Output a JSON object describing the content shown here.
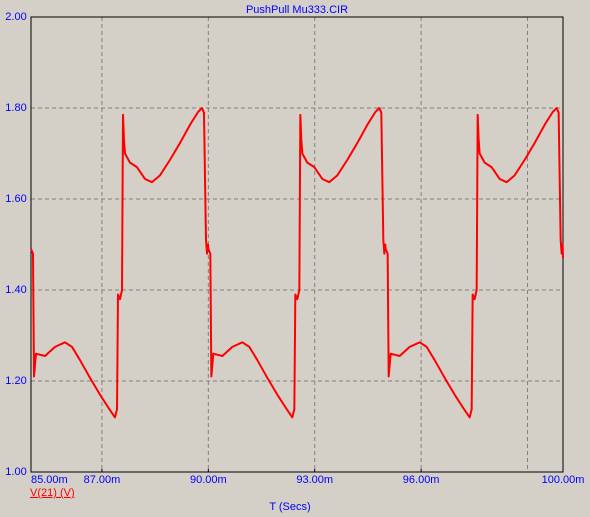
{
  "chart_data": {
    "type": "line",
    "title": "PushPull Mu333.CIR",
    "x_label": "T (Secs)",
    "xlim": [
      0.085,
      0.1
    ],
    "ylim": [
      1.0,
      2.0
    ],
    "xticks": [
      {
        "value": 0.085,
        "label": "85.00m"
      },
      {
        "value": 0.087,
        "label": "87.00m"
      },
      {
        "value": 0.09,
        "label": "90.00m"
      },
      {
        "value": 0.093,
        "label": "93.00m"
      },
      {
        "value": 0.096,
        "label": "96.00m"
      },
      {
        "value": 0.1,
        "label": "100.00m"
      }
    ],
    "xgrid": [
      0.087,
      0.09,
      0.093,
      0.096,
      0.099
    ],
    "yticks": [
      {
        "value": 1.0,
        "label": "1.00"
      },
      {
        "value": 1.2,
        "label": "1.20"
      },
      {
        "value": 1.4,
        "label": "1.40"
      },
      {
        "value": 1.6,
        "label": "1.60"
      },
      {
        "value": 1.8,
        "label": "1.80"
      },
      {
        "value": 2.0,
        "label": "2.00"
      }
    ],
    "grid": true,
    "x": [
      0.085,
      0.085056,
      0.085085,
      0.085141,
      0.085395,
      0.085677,
      0.085959,
      0.086156,
      0.086381,
      0.086663,
      0.086945,
      0.087227,
      0.087368,
      0.087425,
      0.087453,
      0.087509,
      0.087566,
      0.087594,
      0.087622,
      0.08765,
      0.087791,
      0.087988,
      0.088214,
      0.088411,
      0.088637,
      0.088919,
      0.089201,
      0.089483,
      0.089708,
      0.089821,
      0.089877,
      0.089934,
      0.089962,
      0.08999,
      0.09,
      0.090056,
      0.090085,
      0.090141,
      0.090395,
      0.090677,
      0.090959,
      0.091156,
      0.091381,
      0.091663,
      0.091945,
      0.092227,
      0.092368,
      0.092425,
      0.092453,
      0.092509,
      0.092566,
      0.092594,
      0.092622,
      0.09265,
      0.092791,
      0.092988,
      0.093214,
      0.093411,
      0.093637,
      0.093919,
      0.094201,
      0.094483,
      0.094708,
      0.094821,
      0.094877,
      0.094934,
      0.094962,
      0.09499,
      0.095,
      0.095056,
      0.095085,
      0.095141,
      0.095395,
      0.095677,
      0.095959,
      0.096156,
      0.096381,
      0.096663,
      0.096945,
      0.097227,
      0.097368,
      0.097425,
      0.097453,
      0.097509,
      0.097566,
      0.097594,
      0.097622,
      0.09765,
      0.097791,
      0.097988,
      0.098214,
      0.098411,
      0.098637,
      0.098919,
      0.099201,
      0.099483,
      0.099708,
      0.099821,
      0.099877,
      0.099934,
      0.099962,
      0.09999,
      0.1
    ],
    "series": [
      {
        "name": "V(21) (V)",
        "color": "#ff0000",
        "values": [
          1.49,
          1.48,
          1.21,
          1.26,
          1.255,
          1.275,
          1.285,
          1.275,
          1.246,
          1.207,
          1.17,
          1.136,
          1.12,
          1.138,
          1.39,
          1.38,
          1.4,
          1.785,
          1.73,
          1.7,
          1.68,
          1.67,
          1.644,
          1.637,
          1.652,
          1.686,
          1.723,
          1.763,
          1.791,
          1.8,
          1.79,
          1.51,
          1.48,
          1.5,
          1.49,
          1.48,
          1.21,
          1.26,
          1.255,
          1.275,
          1.285,
          1.275,
          1.246,
          1.207,
          1.17,
          1.136,
          1.12,
          1.138,
          1.39,
          1.38,
          1.4,
          1.785,
          1.73,
          1.7,
          1.68,
          1.67,
          1.644,
          1.637,
          1.652,
          1.686,
          1.723,
          1.763,
          1.791,
          1.8,
          1.79,
          1.51,
          1.48,
          1.5,
          1.49,
          1.48,
          1.21,
          1.26,
          1.255,
          1.275,
          1.285,
          1.275,
          1.246,
          1.207,
          1.17,
          1.136,
          1.12,
          1.138,
          1.39,
          1.38,
          1.4,
          1.785,
          1.73,
          1.7,
          1.68,
          1.67,
          1.644,
          1.637,
          1.652,
          1.686,
          1.723,
          1.763,
          1.791,
          1.8,
          1.79,
          1.51,
          1.48,
          1.5,
          1.47
        ]
      }
    ]
  }
}
